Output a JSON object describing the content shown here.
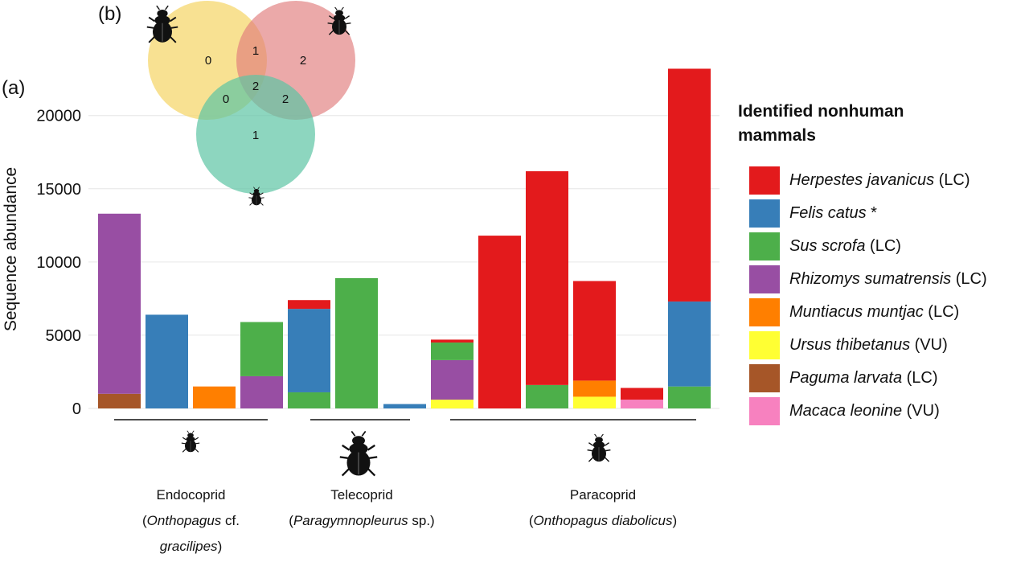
{
  "panel_a_label": "(a)",
  "panel_b_label": "(b)",
  "legend": {
    "title_line1": "Identified nonhuman",
    "title_line2": "mammals",
    "items": [
      {
        "species": "Herpestes javanicus",
        "status": " (LC)",
        "color": "#e31a1c"
      },
      {
        "species": "Felis catus",
        "status": " *",
        "color": "#377eb8"
      },
      {
        "species": "Sus scrofa",
        "status": " (LC)",
        "color": "#4daf4a"
      },
      {
        "species": "Rhizomys sumatrensis",
        "status": " (LC)",
        "color": "#984ea3"
      },
      {
        "species": "Muntiacus muntjac",
        "status": " (LC)",
        "color": "#ff7f00"
      },
      {
        "species": "Ursus thibetanus",
        "status": " (VU)",
        "color": "#ffff33"
      },
      {
        "species": "Paguma larvata",
        "status": " (LC)",
        "color": "#a65628"
      },
      {
        "species": "Macaca leonine",
        "status": " (VU)",
        "color": "#f781bf"
      }
    ]
  },
  "groups": [
    {
      "name": "Endocoprid",
      "paren_open": "(",
      "species": "Onthopagus",
      "rest": " cf.",
      "species2": "gracilipes",
      "paren_close": ")"
    },
    {
      "name": "Telecoprid",
      "paren_open": "(",
      "species": "Paragymnopleurus",
      "rest": " sp.)"
    },
    {
      "name": "Paracoprid",
      "paren_open": "(",
      "species": "Onthopagus diabolicus",
      "rest": ")"
    }
  ],
  "venn": {
    "only_large": "0",
    "only_medium": "2",
    "only_small": "1",
    "large_medium": "1",
    "large_small": "0",
    "medium_small": "2",
    "all_three": "2",
    "colors": {
      "large": "#f5d76e",
      "medium": "#e07b7b",
      "small": "#5cc4a4"
    }
  },
  "chart_data": {
    "type": "bar",
    "stacked": true,
    "ylabel": "Sequence abundance",
    "ylim": [
      0,
      23500
    ],
    "yticks": [
      0,
      5000,
      10000,
      15000,
      20000
    ],
    "grid": true,
    "legend_placement": "right",
    "bars": [
      {
        "group": "Endocoprid",
        "segments": [
          {
            "species": "Paguma larvata",
            "value": 1000
          },
          {
            "species": "Rhizomys sumatrensis",
            "value": 12300
          }
        ]
      },
      {
        "group": "Endocoprid",
        "segments": [
          {
            "species": "Felis catus",
            "value": 6400
          }
        ]
      },
      {
        "group": "Endocoprid",
        "segments": [
          {
            "species": "Muntiacus muntjac",
            "value": 1500
          }
        ]
      },
      {
        "group": "Endocoprid",
        "segments": [
          {
            "species": "Rhizomys sumatrensis",
            "value": 2200
          },
          {
            "species": "Sus scrofa",
            "value": 3700
          }
        ]
      },
      {
        "group": "Telecoprid",
        "segments": [
          {
            "species": "Sus scrofa",
            "value": 1100
          },
          {
            "species": "Felis catus",
            "value": 5700
          },
          {
            "species": "Herpestes javanicus",
            "value": 600
          }
        ]
      },
      {
        "group": "Telecoprid",
        "segments": [
          {
            "species": "Sus scrofa",
            "value": 8900
          }
        ]
      },
      {
        "group": "Telecoprid",
        "segments": [
          {
            "species": "Felis catus",
            "value": 300
          }
        ]
      },
      {
        "group": "Paracoprid",
        "segments": [
          {
            "species": "Ursus thibetanus",
            "value": 600
          },
          {
            "species": "Rhizomys sumatrensis",
            "value": 2700
          },
          {
            "species": "Sus scrofa",
            "value": 1200
          },
          {
            "species": "Herpestes javanicus",
            "value": 200
          }
        ]
      },
      {
        "group": "Paracoprid",
        "segments": [
          {
            "species": "Herpestes javanicus",
            "value": 11800
          }
        ]
      },
      {
        "group": "Paracoprid",
        "segments": [
          {
            "species": "Sus scrofa",
            "value": 1600
          },
          {
            "species": "Herpestes javanicus",
            "value": 14600
          }
        ]
      },
      {
        "group": "Paracoprid",
        "segments": [
          {
            "species": "Ursus thibetanus",
            "value": 800
          },
          {
            "species": "Muntiacus muntjac",
            "value": 1100
          },
          {
            "species": "Herpestes javanicus",
            "value": 6800
          }
        ]
      },
      {
        "group": "Paracoprid",
        "segments": [
          {
            "species": "Macaca leonine",
            "value": 600
          },
          {
            "species": "Herpestes javanicus",
            "value": 800
          }
        ]
      },
      {
        "group": "Paracoprid",
        "segments": [
          {
            "species": "Sus scrofa",
            "value": 1500
          },
          {
            "species": "Felis catus",
            "value": 5800
          },
          {
            "species": "Herpestes javanicus",
            "value": 15900
          }
        ]
      }
    ]
  }
}
